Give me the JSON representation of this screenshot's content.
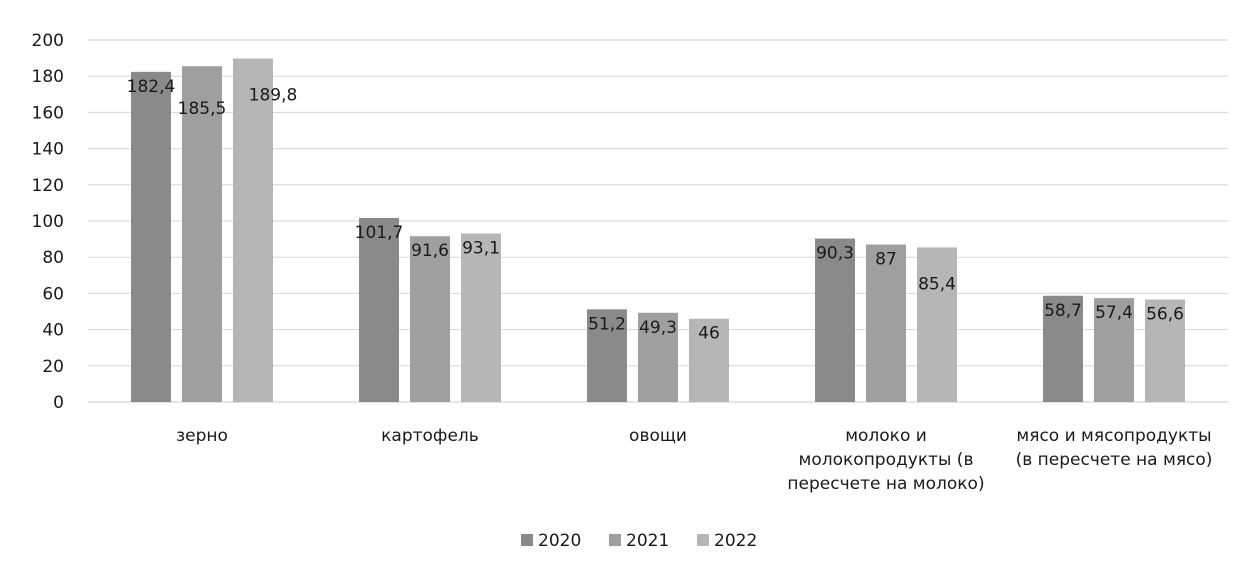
{
  "chart_data": {
    "type": "bar",
    "categories": [
      [
        "зерно"
      ],
      [
        "картофель"
      ],
      [
        "овощи"
      ],
      [
        "молоко и",
        "молокопродукты (в",
        "пересчете на молоко)"
      ],
      [
        "мясо и мясопродукты",
        "(в пересчете на мясо)"
      ]
    ],
    "series": [
      {
        "name": "2020",
        "values": [
          182.4,
          101.7,
          51.2,
          90.3,
          58.7
        ],
        "labels": [
          "182,4",
          "101,7",
          "51,2",
          "90,3",
          "58,7"
        ],
        "color": "#8a8a8a"
      },
      {
        "name": "2021",
        "values": [
          185.5,
          91.6,
          49.3,
          87,
          57.4
        ],
        "labels": [
          "185,5",
          "91,6",
          "49,3",
          "87",
          "57,4"
        ],
        "color": "#9f9f9f"
      },
      {
        "name": "2022",
        "values": [
          189.8,
          93.1,
          46,
          85.4,
          56.6
        ],
        "labels": [
          "189,8",
          "93,1",
          "46",
          "85,4",
          "56,6"
        ],
        "color": "#b6b6b6"
      }
    ],
    "yticks": [
      "0",
      "20",
      "40",
      "60",
      "80",
      "100",
      "120",
      "140",
      "160",
      "180",
      "200"
    ],
    "ylim": [
      0,
      200
    ],
    "grid": true,
    "legend_position": "bottom",
    "title": "",
    "xlabel": "",
    "ylabel": ""
  }
}
